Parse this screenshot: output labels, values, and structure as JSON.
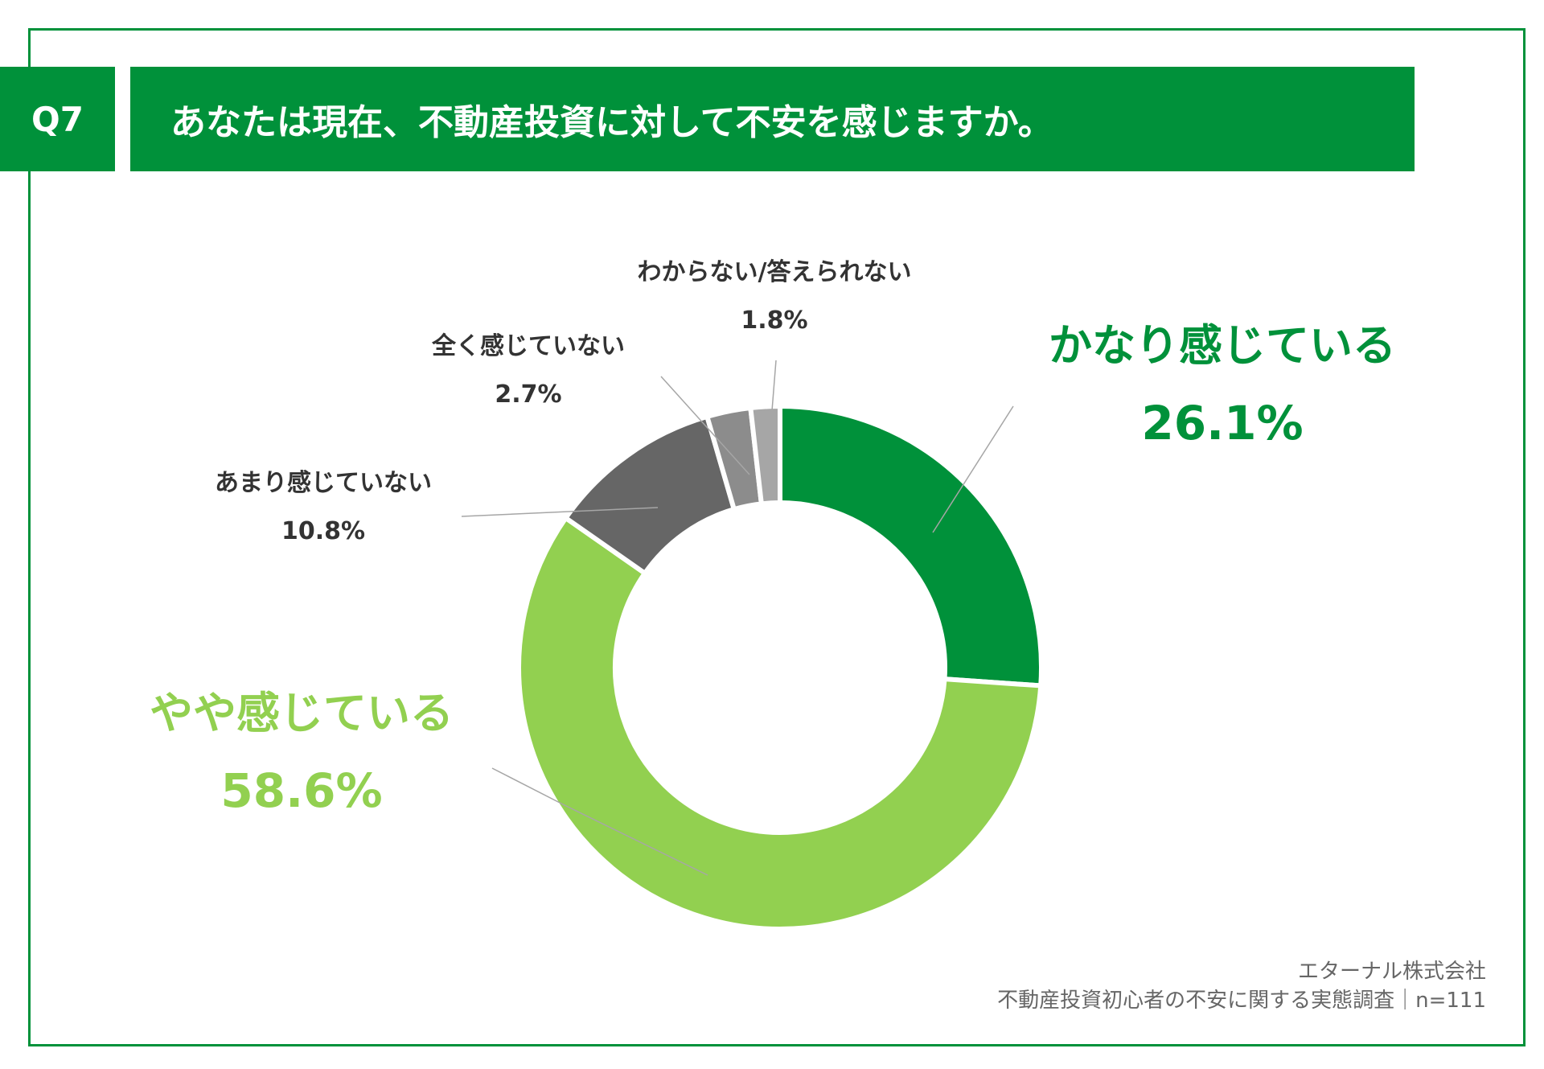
{
  "question": {
    "number": "Q7",
    "text": "あなたは現在、不動産投資に対して不安を感じますか。"
  },
  "chart_data": {
    "type": "pie",
    "donut": true,
    "categories": [
      "かなり感じている",
      "やや感じている",
      "あまり感じていない",
      "全く感じていない",
      "わからない/答えられない"
    ],
    "values": [
      26.1,
      58.6,
      10.8,
      2.7,
      1.8
    ],
    "value_labels": [
      "26.1%",
      "58.6%",
      "10.8%",
      "2.7%",
      "1.8%"
    ],
    "colors": [
      "#00913A",
      "#92D050",
      "#666666",
      "#8C8C8C",
      "#A6A6A6"
    ],
    "label_colors": [
      "#00913A",
      "#92D050",
      "#333333",
      "#333333",
      "#333333"
    ]
  },
  "footer": {
    "company": "エターナル株式会社",
    "survey": "不動産投資初心者の不安に関する実態調査｜n=111"
  }
}
